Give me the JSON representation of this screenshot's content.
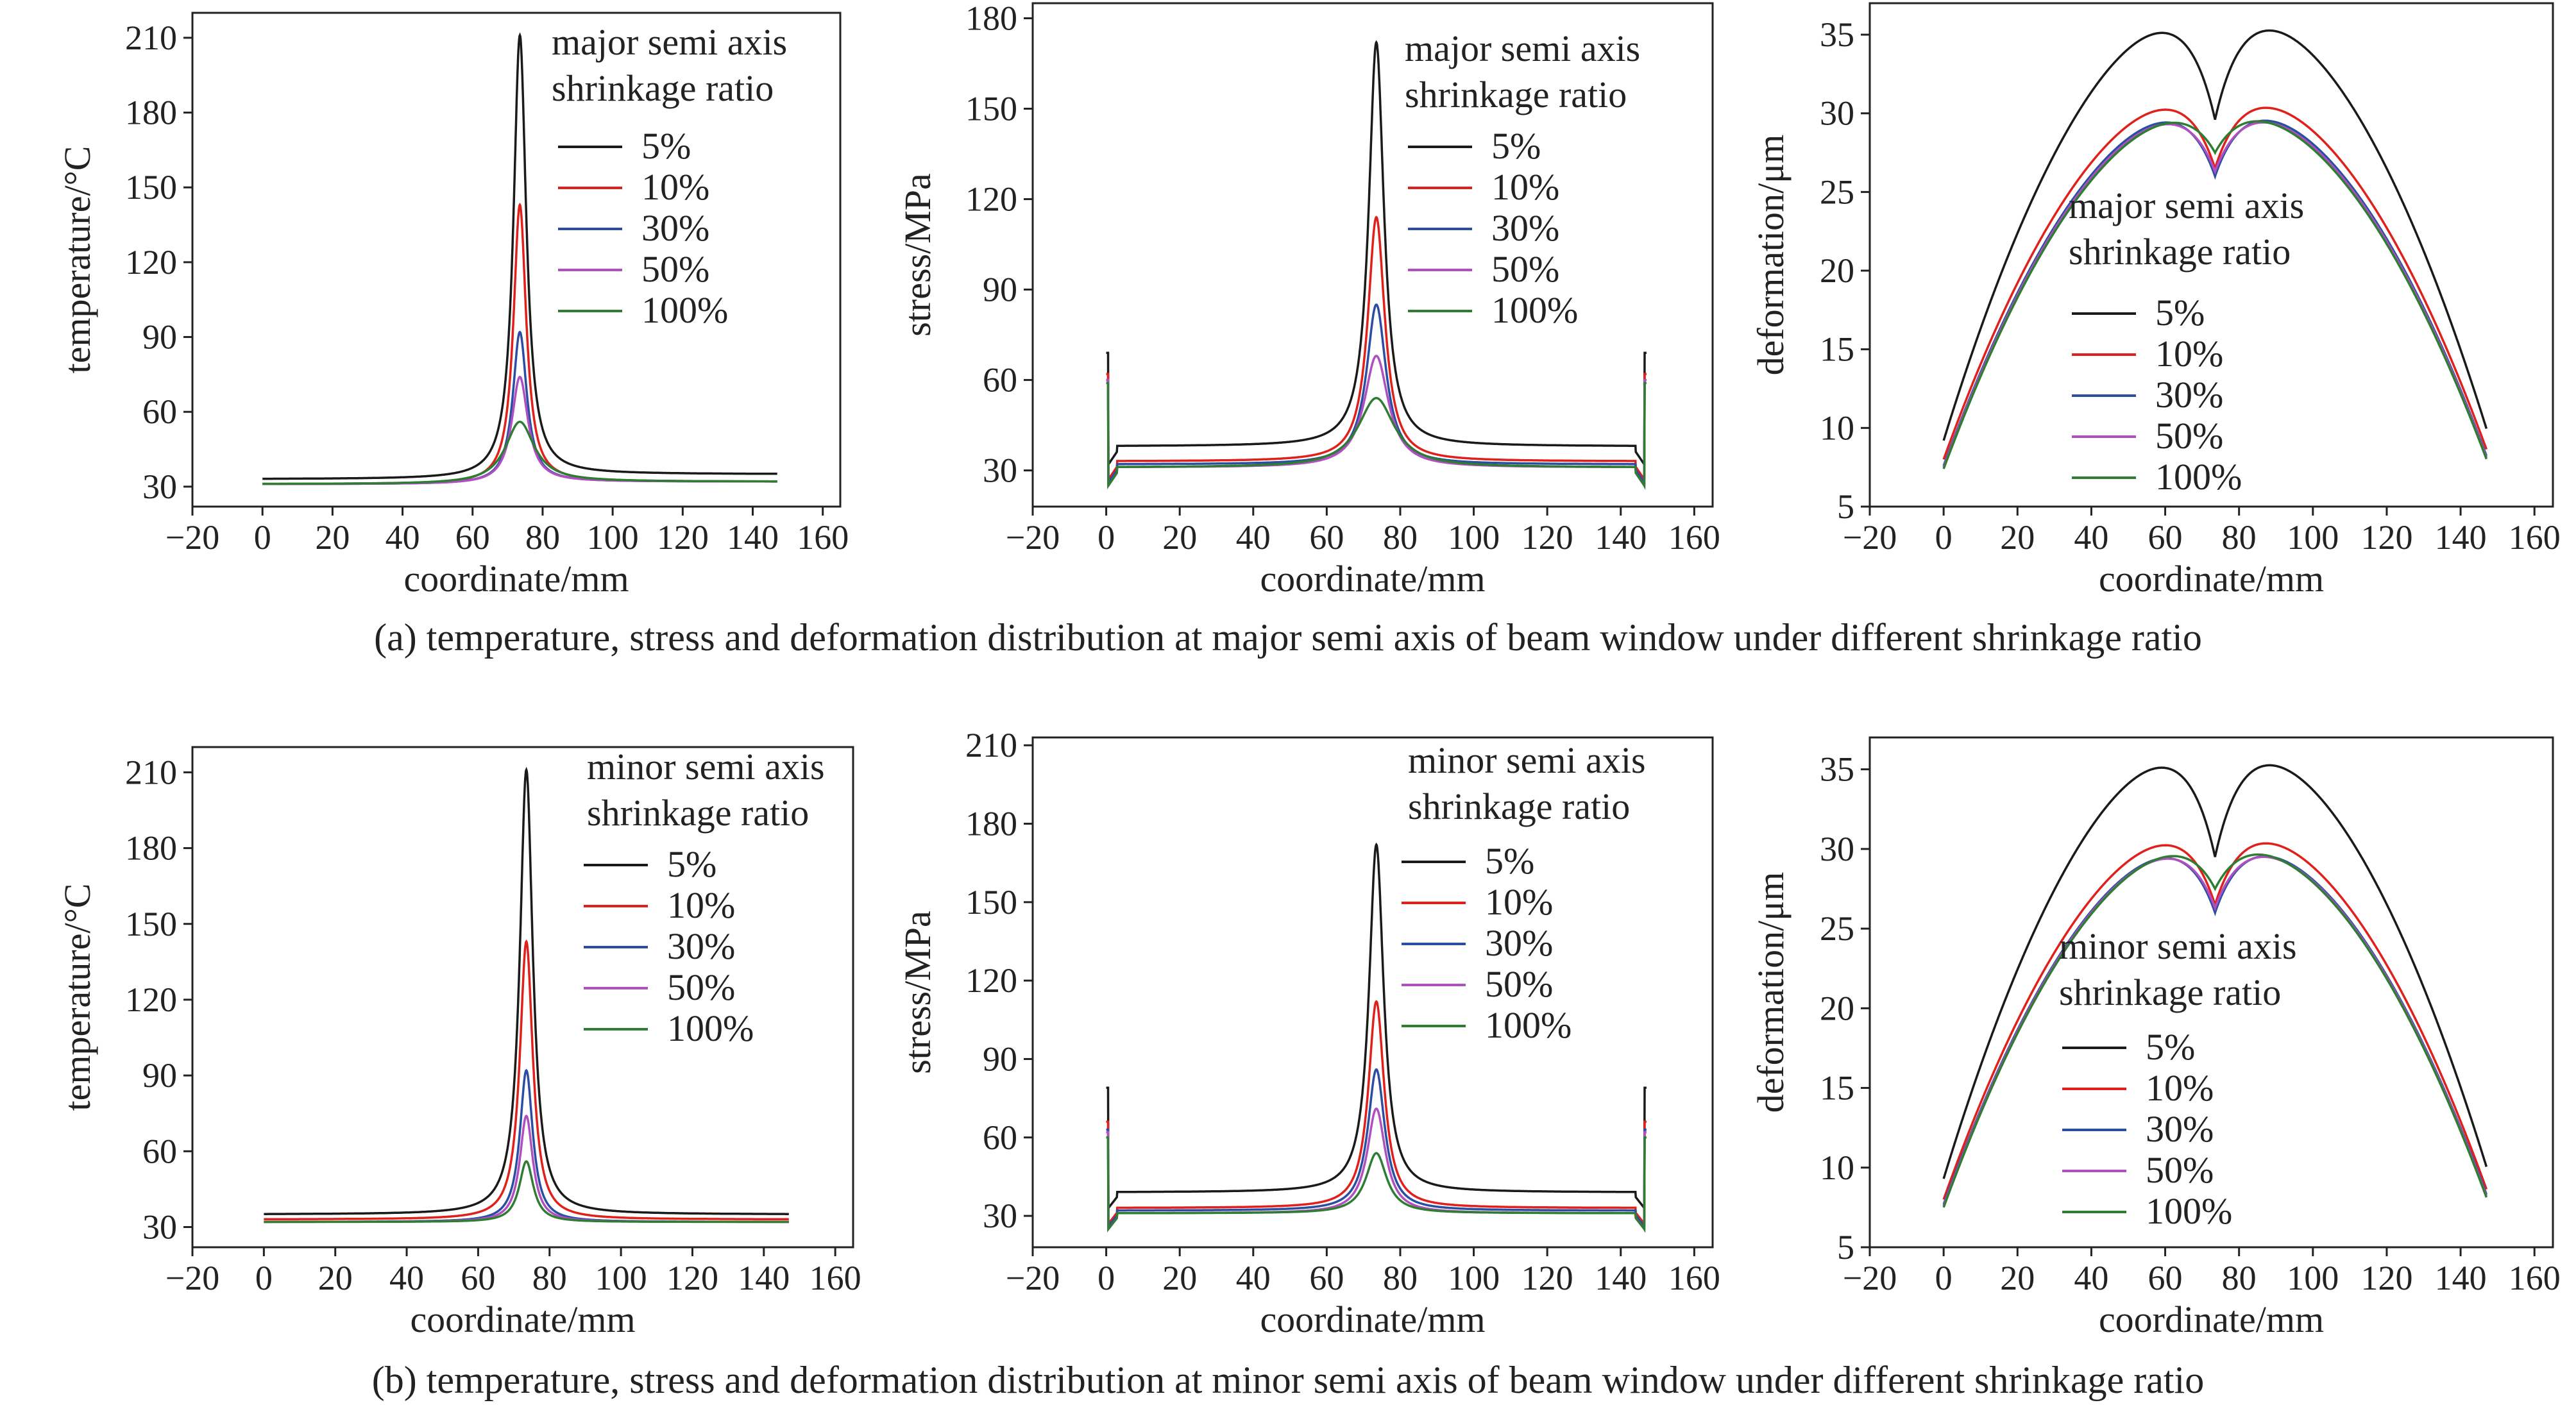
{
  "captions": {
    "a": "(a) temperature, stress and deformation distribution at major semi axis of beam window under different shrinkage ratio",
    "b": "(b) temperature, stress and deformation distribution at minor semi axis of beam window under different shrinkage ratio"
  },
  "chart_data": [
    {
      "type": "line",
      "panel": "a-temperature",
      "xlabel": "coordinate/mm",
      "ylabel": "temperature/°C",
      "xlim": [
        -20,
        165
      ],
      "ylim": [
        22,
        220
      ],
      "xticks": [
        -20,
        0,
        20,
        40,
        60,
        80,
        100,
        120,
        140,
        160
      ],
      "yticks": [
        30,
        60,
        90,
        120,
        150,
        180,
        210
      ],
      "legend_title": [
        "major semi axis",
        "shrinkage ratio"
      ],
      "peak_x": 73.5,
      "series": [
        {
          "name": "5%",
          "color": "#1a1a1a",
          "left": 33,
          "right": 35,
          "peak": 211,
          "width": 2.2
        },
        {
          "name": "10%",
          "color": "#e0201b",
          "left": 31,
          "right": 32,
          "peak": 143,
          "width": 2.2
        },
        {
          "name": "30%",
          "color": "#2b4ea2",
          "left": 31,
          "right": 32,
          "peak": 92,
          "width": 2.4
        },
        {
          "name": "50%",
          "color": "#b04fc0",
          "left": 31,
          "right": 32,
          "peak": 74,
          "width": 2.8
        },
        {
          "name": "100%",
          "color": "#2e7d32",
          "left": 31,
          "right": 32,
          "peak": 56,
          "width": 5
        }
      ]
    },
    {
      "type": "line",
      "panel": "a-stress",
      "xlabel": "coordinate/mm",
      "ylabel": "stress/MPa",
      "xlim": [
        -20,
        165
      ],
      "ylim": [
        18,
        185
      ],
      "xticks": [
        -20,
        0,
        20,
        40,
        60,
        80,
        100,
        120,
        140,
        160
      ],
      "yticks": [
        30,
        60,
        90,
        120,
        150,
        180
      ],
      "legend_title": [
        "major semi axis",
        "shrinkage ratio"
      ],
      "peak_x": 73.5,
      "series": [
        {
          "name": "5%",
          "color": "#1a1a1a",
          "base": 38,
          "edge_spike": 69,
          "peak": 172,
          "width": 2.5
        },
        {
          "name": "10%",
          "color": "#e0201b",
          "base": 33,
          "edge_spike": 62,
          "peak": 114,
          "width": 2.8
        },
        {
          "name": "30%",
          "color": "#2b4ea2",
          "base": 32,
          "edge_spike": 60,
          "peak": 85,
          "width": 3.2
        },
        {
          "name": "50%",
          "color": "#b04fc0",
          "base": 31,
          "edge_spike": 60,
          "peak": 68,
          "width": 4
        },
        {
          "name": "100%",
          "color": "#2e7d32",
          "base": 31,
          "edge_spike": 59,
          "peak": 54,
          "width": 6
        }
      ]
    },
    {
      "type": "line",
      "panel": "a-deformation",
      "xlabel": "coordinate/mm",
      "ylabel": "deformation/μm",
      "xlim": [
        -20,
        165
      ],
      "ylim": [
        5,
        37
      ],
      "xticks": [
        -20,
        0,
        20,
        40,
        60,
        80,
        100,
        120,
        140,
        160
      ],
      "yticks": [
        5,
        10,
        15,
        20,
        25,
        30,
        35
      ],
      "legend_title": [
        "major semi axis",
        "shrinkage ratio"
      ],
      "peak_x": 73.5,
      "series": [
        {
          "name": "5%",
          "color": "#1a1a1a",
          "end": 9.2,
          "max": 35.0,
          "dip": 29.6
        },
        {
          "name": "10%",
          "color": "#e0201b",
          "end": 8.0,
          "max": 29.6,
          "dip": 26.5
        },
        {
          "name": "30%",
          "color": "#2b4ea2",
          "end": 7.6,
          "max": 28.7,
          "dip": 26.0
        },
        {
          "name": "50%",
          "color": "#b04fc0",
          "end": 7.5,
          "max": 28.5,
          "dip": 26.3
        },
        {
          "name": "100%",
          "color": "#2e7d32",
          "end": 7.4,
          "max": 28.3,
          "dip": 27.5
        }
      ]
    },
    {
      "type": "line",
      "panel": "b-temperature",
      "xlabel": "coordinate/mm",
      "ylabel": "temperature/°C",
      "xlim": [
        -20,
        165
      ],
      "ylim": [
        22,
        220
      ],
      "xticks": [
        -20,
        0,
        20,
        40,
        60,
        80,
        100,
        120,
        140,
        160
      ],
      "yticks": [
        30,
        60,
        90,
        120,
        150,
        180,
        210
      ],
      "legend_title": [
        "minor semi axis",
        "shrinkage ratio"
      ],
      "peak_x": 73.5,
      "series": [
        {
          "name": "5%",
          "color": "#1a1a1a",
          "left": 35,
          "right": 35,
          "peak": 211,
          "width": 2.2
        },
        {
          "name": "10%",
          "color": "#e0201b",
          "left": 33,
          "right": 33,
          "peak": 143,
          "width": 2.2
        },
        {
          "name": "30%",
          "color": "#2b4ea2",
          "left": 32,
          "right": 32,
          "peak": 92,
          "width": 2.2
        },
        {
          "name": "50%",
          "color": "#b04fc0",
          "left": 32,
          "right": 32,
          "peak": 74,
          "width": 2.2
        },
        {
          "name": "100%",
          "color": "#2e7d32",
          "left": 32,
          "right": 32,
          "peak": 56,
          "width": 2.4
        }
      ]
    },
    {
      "type": "line",
      "panel": "b-stress",
      "xlabel": "coordinate/mm",
      "ylabel": "stress/MPa",
      "xlim": [
        -20,
        165
      ],
      "ylim": [
        18,
        213
      ],
      "xticks": [
        -20,
        0,
        20,
        40,
        60,
        80,
        100,
        120,
        140,
        160
      ],
      "yticks": [
        30,
        60,
        90,
        120,
        150,
        180,
        210
      ],
      "legend_title": [
        "minor semi axis",
        "shrinkage ratio"
      ],
      "peak_x": 73.5,
      "series": [
        {
          "name": "5%",
          "color": "#1a1a1a",
          "base": 39,
          "edge_spike": 79,
          "peak": 172,
          "width": 2.4
        },
        {
          "name": "10%",
          "color": "#e0201b",
          "base": 33,
          "edge_spike": 66,
          "peak": 112,
          "width": 2.6
        },
        {
          "name": "30%",
          "color": "#2b4ea2",
          "base": 32,
          "edge_spike": 63,
          "peak": 86,
          "width": 2.8
        },
        {
          "name": "50%",
          "color": "#b04fc0",
          "base": 31,
          "edge_spike": 62,
          "peak": 71,
          "width": 3
        },
        {
          "name": "100%",
          "color": "#2e7d32",
          "base": 31,
          "edge_spike": 60,
          "peak": 54,
          "width": 3.4
        }
      ]
    },
    {
      "type": "line",
      "panel": "b-deformation",
      "xlabel": "coordinate/mm",
      "ylabel": "deformation/μm",
      "xlim": [
        -20,
        165
      ],
      "ylim": [
        5,
        37
      ],
      "xticks": [
        -20,
        0,
        20,
        40,
        60,
        80,
        100,
        120,
        140,
        160
      ],
      "yticks": [
        5,
        10,
        15,
        20,
        25,
        30,
        35
      ],
      "legend_title": [
        "minor semi axis",
        "shrinkage ratio"
      ],
      "peak_x": 73.5,
      "series": [
        {
          "name": "5%",
          "color": "#1a1a1a",
          "end": 9.3,
          "max": 35.0,
          "dip": 29.5
        },
        {
          "name": "10%",
          "color": "#e0201b",
          "end": 8.0,
          "max": 29.6,
          "dip": 26.5
        },
        {
          "name": "30%",
          "color": "#2b4ea2",
          "end": 7.7,
          "max": 28.7,
          "dip": 26.0
        },
        {
          "name": "50%",
          "color": "#b04fc0",
          "end": 7.6,
          "max": 28.6,
          "dip": 26.3
        },
        {
          "name": "100%",
          "color": "#2e7d32",
          "end": 7.5,
          "max": 28.5,
          "dip": 27.5
        }
      ]
    }
  ]
}
